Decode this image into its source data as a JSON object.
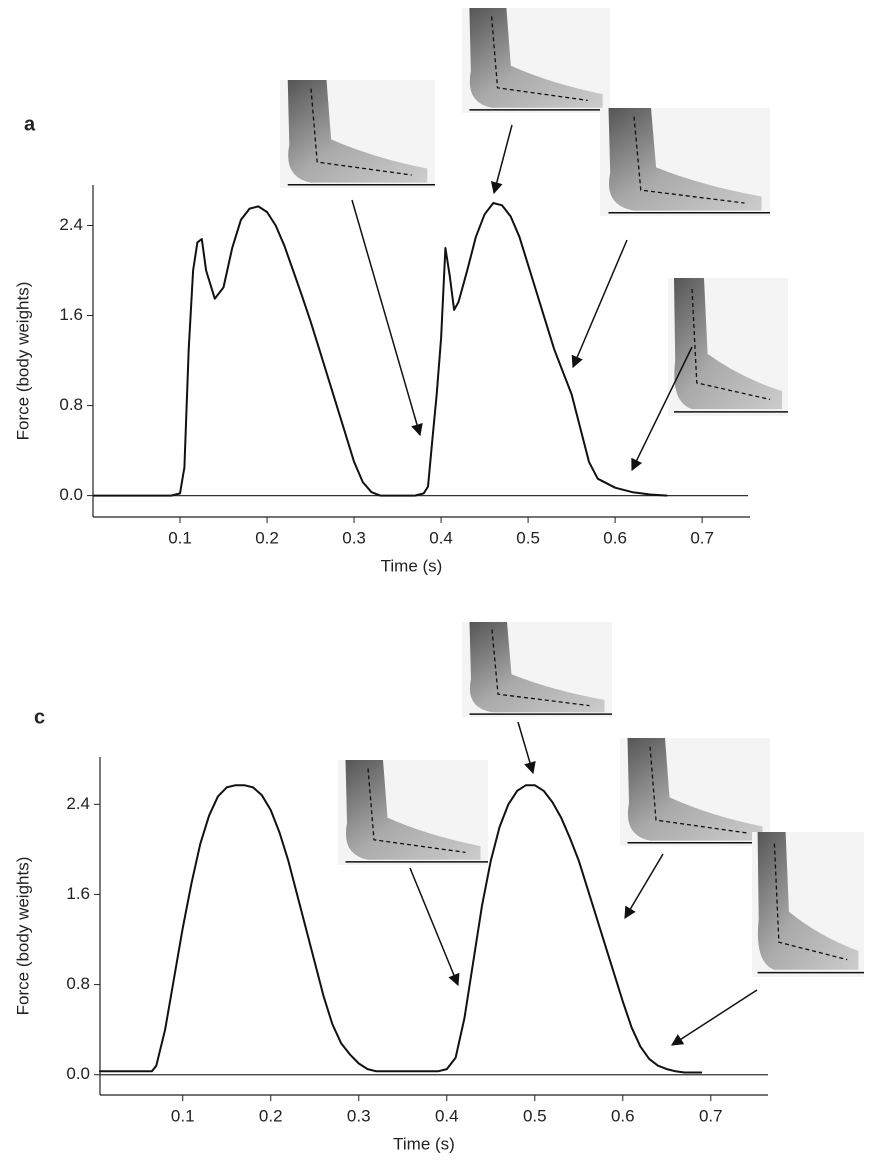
{
  "chart_data": [
    {
      "type": "line",
      "panel": "a",
      "y_label": "Force (body weights)",
      "x_label": "Time (s)",
      "color": "#111111",
      "xlim": [
        0,
        0.755
      ],
      "ylim": [
        -0.19,
        2.76
      ],
      "xticks": [
        0.1,
        0.2,
        0.3,
        0.4,
        0.5,
        0.6,
        0.7
      ],
      "yticks": [
        {
          "value": 0,
          "label": "0.0"
        },
        0.8,
        1.6,
        2.4
      ],
      "x": [
        0,
        0.09,
        0.1,
        0.105,
        0.11,
        0.115,
        0.12,
        0.125,
        0.13,
        0.14,
        0.15,
        0.16,
        0.17,
        0.18,
        0.19,
        0.2,
        0.21,
        0.22,
        0.23,
        0.24,
        0.25,
        0.26,
        0.27,
        0.28,
        0.29,
        0.3,
        0.31,
        0.32,
        0.33,
        0.37,
        0.38,
        0.385,
        0.39,
        0.395,
        0.4,
        0.405,
        0.41,
        0.415,
        0.42,
        0.43,
        0.44,
        0.45,
        0.46,
        0.47,
        0.48,
        0.49,
        0.5,
        0.51,
        0.52,
        0.53,
        0.54,
        0.55,
        0.56,
        0.57,
        0.58,
        0.6,
        0.62,
        0.64,
        0.66
      ],
      "values": [
        0,
        0,
        0.02,
        0.25,
        1.3,
        2.0,
        2.25,
        2.28,
        2.0,
        1.75,
        1.85,
        2.2,
        2.45,
        2.55,
        2.57,
        2.52,
        2.4,
        2.22,
        2.0,
        1.78,
        1.55,
        1.3,
        1.05,
        0.8,
        0.55,
        0.3,
        0.12,
        0.03,
        0,
        0,
        0.02,
        0.08,
        0.5,
        0.9,
        1.4,
        2.2,
        1.95,
        1.65,
        1.72,
        2.0,
        2.3,
        2.5,
        2.6,
        2.58,
        2.48,
        2.3,
        2.05,
        1.8,
        1.55,
        1.3,
        1.1,
        0.9,
        0.6,
        0.3,
        0.15,
        0.07,
        0.03,
        0.01,
        0
      ]
    },
    {
      "type": "line",
      "panel": "c",
      "y_label": "Force (body weights)",
      "x_label": "Time (s)",
      "color": "#111111",
      "xlim": [
        0.006,
        0.765
      ],
      "ylim": [
        -0.18,
        2.82
      ],
      "xticks": [
        0.1,
        0.2,
        0.3,
        0.4,
        0.5,
        0.6,
        0.7
      ],
      "yticks": [
        {
          "value": 0,
          "label": "0.0"
        },
        0.8,
        1.6,
        2.4
      ],
      "x": [
        0.005,
        0.065,
        0.07,
        0.08,
        0.09,
        0.1,
        0.11,
        0.12,
        0.13,
        0.14,
        0.15,
        0.16,
        0.17,
        0.18,
        0.19,
        0.2,
        0.21,
        0.22,
        0.23,
        0.24,
        0.25,
        0.26,
        0.27,
        0.28,
        0.29,
        0.3,
        0.31,
        0.32,
        0.33,
        0.39,
        0.4,
        0.41,
        0.42,
        0.43,
        0.44,
        0.45,
        0.46,
        0.47,
        0.48,
        0.49,
        0.5,
        0.51,
        0.52,
        0.53,
        0.54,
        0.55,
        0.56,
        0.57,
        0.58,
        0.59,
        0.6,
        0.61,
        0.62,
        0.63,
        0.64,
        0.65,
        0.66,
        0.67,
        0.68,
        0.69
      ],
      "values": [
        0.03,
        0.03,
        0.08,
        0.4,
        0.85,
        1.3,
        1.7,
        2.05,
        2.3,
        2.47,
        2.55,
        2.57,
        2.57,
        2.55,
        2.48,
        2.35,
        2.15,
        1.9,
        1.6,
        1.3,
        1.0,
        0.7,
        0.45,
        0.28,
        0.18,
        0.1,
        0.05,
        0.03,
        0.03,
        0.03,
        0.05,
        0.15,
        0.5,
        1.0,
        1.5,
        1.9,
        2.2,
        2.4,
        2.52,
        2.57,
        2.57,
        2.52,
        2.42,
        2.28,
        2.1,
        1.9,
        1.65,
        1.4,
        1.15,
        0.9,
        0.65,
        0.42,
        0.25,
        0.14,
        0.08,
        0.05,
        0.03,
        0.02,
        0.02,
        0.02
      ]
    }
  ]
}
